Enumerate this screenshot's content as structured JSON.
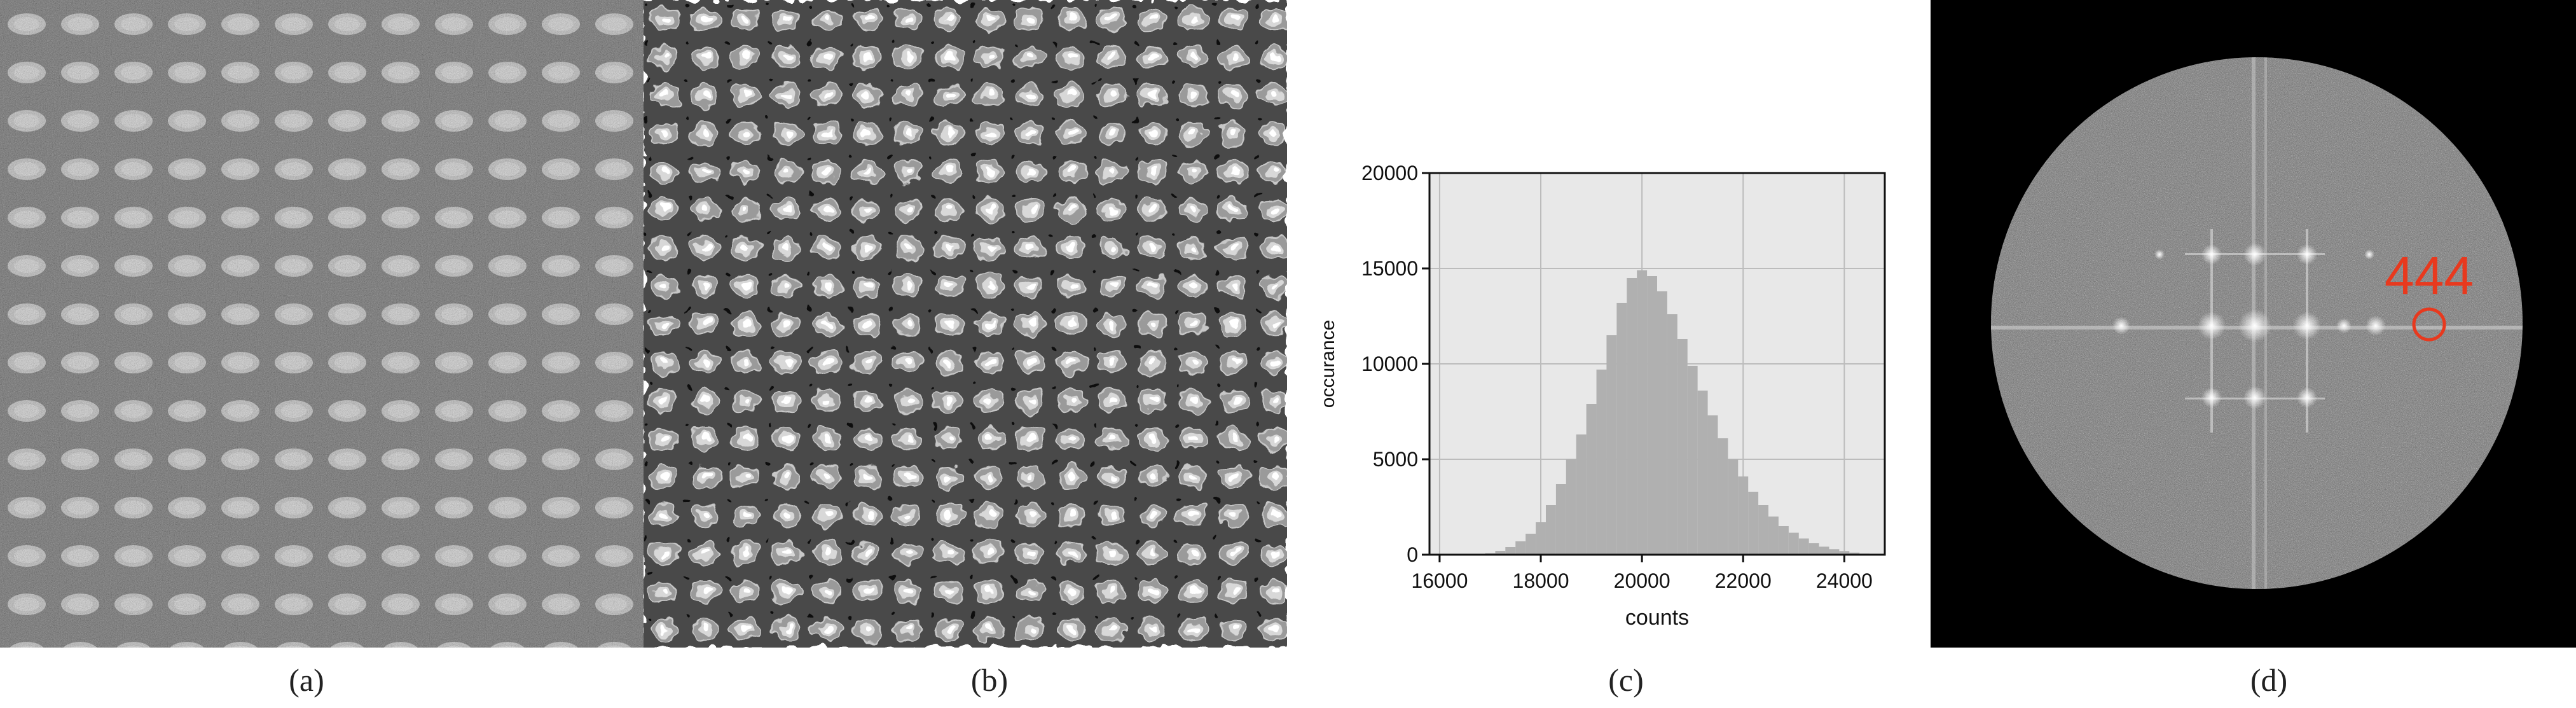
{
  "captions": {
    "a": "(a)",
    "b": "(b)",
    "c": "(c)",
    "d": "(d)"
  },
  "panel_d": {
    "label": "444",
    "label_color": "#e8391e"
  },
  "chart_data": {
    "type": "bar",
    "title": "",
    "xlabel": "counts",
    "ylabel": "occurance",
    "xlim": [
      15800,
      24800
    ],
    "ylim": [
      0,
      20000
    ],
    "xticks": [
      "16000",
      "18000",
      "20000",
      "22000",
      "24000"
    ],
    "yticks": [
      "0",
      "5000",
      "10000",
      "15000",
      "20000"
    ],
    "grid": true,
    "bar_color": "#b0b0b0",
    "background": "#e8e8e8",
    "bin_width": 200,
    "x": [
      17000,
      17200,
      17400,
      17600,
      17800,
      18000,
      18200,
      18400,
      18600,
      18800,
      19000,
      19200,
      19400,
      19600,
      19800,
      20000,
      20200,
      20400,
      20600,
      20800,
      21000,
      21200,
      21400,
      21600,
      21800,
      22000,
      22200,
      22400,
      22600,
      22800,
      23000,
      23200,
      23400,
      23600,
      23800,
      24000,
      24200,
      24400
    ],
    "values": [
      80,
      200,
      400,
      700,
      1100,
      1700,
      2600,
      3700,
      5000,
      6300,
      7900,
      9700,
      11500,
      13200,
      14500,
      14900,
      14600,
      13800,
      12600,
      11300,
      9900,
      8600,
      7300,
      6100,
      5000,
      4100,
      3300,
      2600,
      2000,
      1500,
      1150,
      850,
      600,
      420,
      290,
      190,
      110,
      60
    ]
  }
}
